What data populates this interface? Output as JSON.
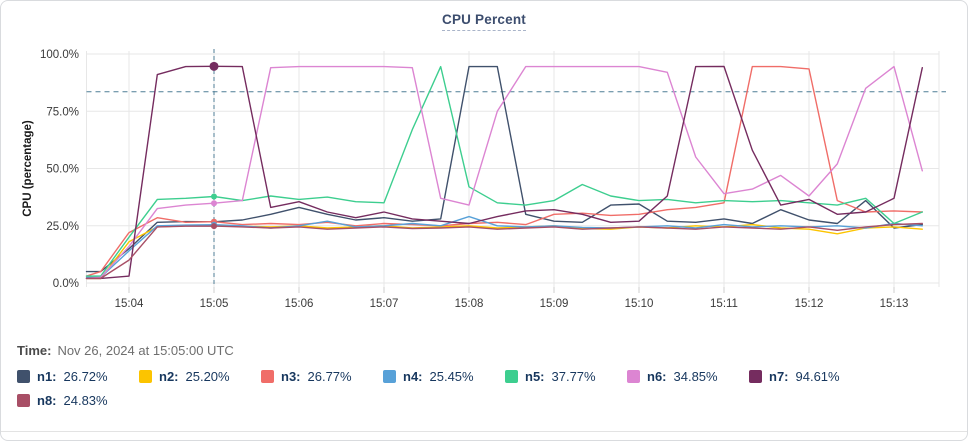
{
  "title": "CPU Percent",
  "time_row": {
    "label": "Time:",
    "value": "Nov 26, 2024 at 15:05:00 UTC"
  },
  "chart_data": {
    "type": "line",
    "title": "CPU Percent",
    "xlabel": "",
    "ylabel": "CPU (percentage)",
    "ylim": [
      0,
      100
    ],
    "grid": true,
    "legend_position": "bottom",
    "threshold_line": 83.5,
    "crosshair_time": "15:05:00",
    "yticks": {
      "values": [
        0,
        25,
        50,
        75,
        100
      ],
      "labels": [
        "0.0%",
        "25.0%",
        "50.0%",
        "75.0%",
        "100.0%"
      ]
    },
    "xticks": [
      "15:04",
      "15:05",
      "15:06",
      "15:07",
      "15:08",
      "15:09",
      "15:10",
      "15:11",
      "15:12",
      "15:13"
    ],
    "x": [
      "15:03:30",
      "15:03:40",
      "15:04:00",
      "15:04:20",
      "15:04:40",
      "15:05:00",
      "15:05:20",
      "15:05:40",
      "15:06:00",
      "15:06:20",
      "15:06:40",
      "15:07:00",
      "15:07:20",
      "15:07:40",
      "15:08:00",
      "15:08:20",
      "15:08:40",
      "15:09:00",
      "15:09:20",
      "15:09:40",
      "15:10:00",
      "15:10:20",
      "15:10:40",
      "15:11:00",
      "15:11:20",
      "15:11:40",
      "15:12:00",
      "15:12:20",
      "15:12:40",
      "15:13:00",
      "15:13:20"
    ],
    "series": [
      {
        "name": "n1",
        "color": "#40516c",
        "values": [
          5,
          5,
          15,
          26.5,
          26.8,
          26.72,
          27.5,
          30,
          33,
          30,
          27.5,
          28.5,
          27,
          28,
          94.5,
          94.5,
          30,
          27,
          26.5,
          34,
          34.5,
          27,
          26.5,
          28,
          26,
          32,
          27.5,
          26,
          36,
          24,
          25.5
        ]
      },
      {
        "name": "n2",
        "color": "#fcc400",
        "values": [
          2,
          2,
          18,
          24.5,
          25,
          25.2,
          24.8,
          24.5,
          25,
          24,
          24.5,
          25,
          24,
          24.5,
          25,
          24,
          24.5,
          25,
          23.8,
          23.5,
          24.5,
          24,
          25,
          24.5,
          25.5,
          24,
          23.5,
          21.5,
          24,
          24.5,
          23.5
        ]
      },
      {
        "name": "n3",
        "color": "#f06d68",
        "values": [
          3,
          5,
          22,
          28.5,
          26.5,
          26.77,
          25.5,
          26,
          25.5,
          26.5,
          25,
          26,
          25.5,
          25,
          26,
          26.5,
          25.5,
          30,
          30.5,
          29.5,
          30,
          32,
          33,
          35,
          94.5,
          94.5,
          93.5,
          36,
          31,
          31.5,
          31
        ]
      },
      {
        "name": "n4",
        "color": "#58a1d8",
        "values": [
          2.5,
          2.5,
          14,
          25,
          25.3,
          25.45,
          25,
          24,
          25,
          27,
          24.5,
          25,
          26,
          25,
          29,
          25,
          24.5,
          25,
          24.3,
          24,
          24.5,
          25,
          24,
          25.5,
          24.5,
          25,
          24.5,
          25,
          24,
          26,
          25
        ]
      },
      {
        "name": "n5",
        "color": "#3dce8f",
        "values": [
          3,
          3,
          20,
          36.5,
          37,
          37.77,
          36,
          38,
          36.5,
          37.5,
          35.5,
          35,
          67,
          94.5,
          42,
          35,
          34,
          36,
          43,
          38,
          36,
          36.5,
          35,
          36,
          35.5,
          36,
          35,
          34,
          37,
          26,
          31
        ]
      },
      {
        "name": "n6",
        "color": "#dc85d2",
        "values": [
          2,
          2.5,
          16,
          32.5,
          34,
          34.85,
          36,
          94,
          94.5,
          94.5,
          94.5,
          94.5,
          94,
          37,
          34,
          75,
          94.5,
          94.5,
          94.5,
          94.5,
          94.5,
          92,
          55,
          39,
          41,
          47,
          38,
          52,
          85,
          94.5,
          49
        ]
      },
      {
        "name": "n7",
        "color": "#752c5f",
        "values": [
          2,
          2,
          3,
          91,
          94.5,
          94.61,
          94.5,
          33,
          35.5,
          31,
          28.5,
          31,
          28,
          27,
          26,
          29,
          31.5,
          32,
          30,
          26.5,
          27,
          38,
          94.5,
          94.6,
          58,
          34,
          36.5,
          30,
          31,
          37,
          94
        ]
      },
      {
        "name": "n8",
        "color": "#a84f66",
        "values": [
          2,
          2,
          10,
          24.5,
          24.8,
          24.83,
          24.5,
          24,
          24.5,
          23.5,
          24,
          24.5,
          23.8,
          24,
          24.5,
          23.5,
          24,
          24.5,
          23.5,
          24,
          24.5,
          24,
          23.5,
          24.5,
          24,
          23.5,
          24.5,
          23,
          24.5,
          25.5,
          26
        ]
      }
    ]
  },
  "legend": {
    "items": [
      {
        "name": "n1",
        "label": "n1:",
        "value": "26.72%",
        "color": "#40516c"
      },
      {
        "name": "n2",
        "label": "n2:",
        "value": "25.20%",
        "color": "#fcc400"
      },
      {
        "name": "n3",
        "label": "n3:",
        "value": "26.77%",
        "color": "#f06d68"
      },
      {
        "name": "n4",
        "label": "n4:",
        "value": "25.45%",
        "color": "#58a1d8"
      },
      {
        "name": "n5",
        "label": "n5:",
        "value": "37.77%",
        "color": "#3dce8f"
      },
      {
        "name": "n6",
        "label": "n6:",
        "value": "34.85%",
        "color": "#dc85d2"
      },
      {
        "name": "n7",
        "label": "n7:",
        "value": "94.61%",
        "color": "#752c5f"
      },
      {
        "name": "n8",
        "label": "n8:",
        "value": "24.83%",
        "color": "#a84f66"
      }
    ]
  },
  "style": {
    "grid_color": "#e7e7e7",
    "tick_color": "#cfcfcf",
    "axis_text_color": "#3a3a3a",
    "crosshair_color": "#4f7e96",
    "title_color": "#3c4d6e"
  }
}
